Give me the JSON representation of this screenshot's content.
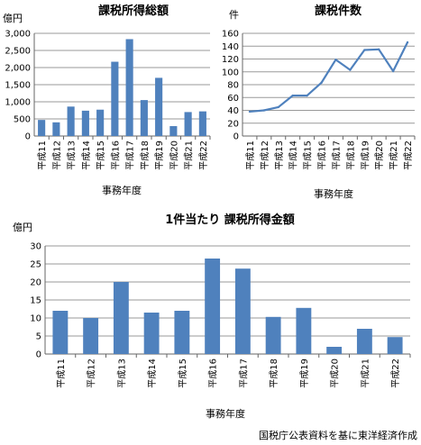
{
  "chart_data": [
    {
      "type": "bar",
      "title": "課税所得総額",
      "unit_label": "億円",
      "xlabel": "事務年度",
      "categories": [
        "平成11",
        "平成12",
        "平成13",
        "平成14",
        "平成15",
        "平成16",
        "平成17",
        "平成18",
        "平成19",
        "平成20",
        "平成21",
        "平成22"
      ],
      "values": [
        470,
        400,
        860,
        740,
        770,
        2170,
        2830,
        1050,
        1700,
        290,
        700,
        720
      ],
      "ylim": [
        0,
        3000
      ],
      "yticks": [
        "0",
        "500",
        "1,000",
        "1,500",
        "2,000",
        "2,500",
        "3,000"
      ],
      "grid": true,
      "color": "#4f81bd"
    },
    {
      "type": "line",
      "title": "課税件数",
      "unit_label": "件",
      "xlabel": "事務年度",
      "categories": [
        "平成11",
        "平成12",
        "平成13",
        "平成14",
        "平成15",
        "平成16",
        "平成17",
        "平成18",
        "平成19",
        "平成20",
        "平成21",
        "平成22"
      ],
      "values": [
        38,
        40,
        45,
        63,
        63,
        83,
        119,
        103,
        134,
        135,
        101,
        146
      ],
      "ylim": [
        0,
        160
      ],
      "yticks": [
        "0",
        "20",
        "40",
        "60",
        "80",
        "100",
        "120",
        "140",
        "160"
      ],
      "grid": true,
      "color": "#4f81bd"
    },
    {
      "type": "bar",
      "title": "1件当たり 課税所得金額",
      "unit_label": "億円",
      "xlabel": "事務年度",
      "categories": [
        "平成11",
        "平成12",
        "平成13",
        "平成14",
        "平成15",
        "平成16",
        "平成17",
        "平成18",
        "平成19",
        "平成20",
        "平成21",
        "平成22"
      ],
      "values": [
        12,
        10,
        20,
        11.5,
        12,
        26.5,
        23.7,
        10.3,
        12.8,
        2,
        7,
        4.7
      ],
      "ylim": [
        0,
        30
      ],
      "yticks": [
        "0",
        "5",
        "10",
        "15",
        "20",
        "25",
        "30"
      ],
      "grid": true,
      "color": "#4f81bd"
    }
  ],
  "source_note": "国税庁公表資料を基に東洋経済作成"
}
